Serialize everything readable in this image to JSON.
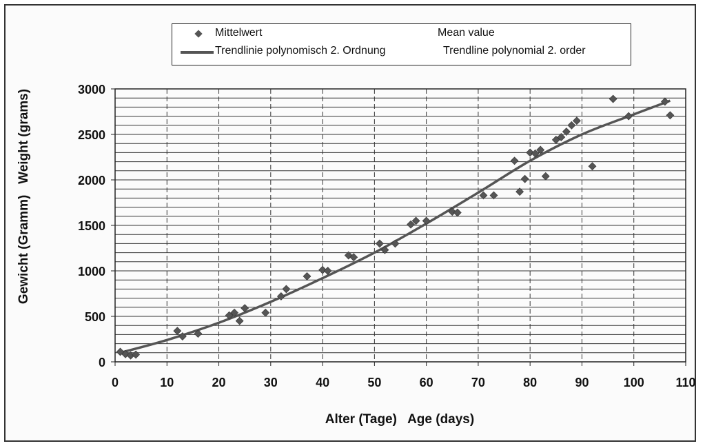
{
  "chart_data": {
    "type": "scatter",
    "xlabel": "Alter (Tage)   Age (days)",
    "ylabel": "Gewicht (Gramm)   Weight (grams)",
    "xlim": [
      0,
      110
    ],
    "ylim": [
      0,
      3000
    ],
    "x_ticks": [
      "0",
      "10",
      "20",
      "30",
      "40",
      "50",
      "60",
      "70",
      "80",
      "90",
      "100",
      "110"
    ],
    "y_ticks": [
      "0",
      "500",
      "1000",
      "1500",
      "2000",
      "2500",
      "3000"
    ],
    "grid": "horizontal solid every 100, vertical dashed every 10",
    "legend_position": "top",
    "legend": [
      {
        "label": "Mittelwert",
        "label_en": "Mean value",
        "marker": "diamond"
      },
      {
        "label": "Trendlinie polynomisch 2. Ordnung",
        "label_en": "Trendline polynomial 2. order",
        "marker": "line"
      }
    ],
    "series": [
      {
        "name": "Mittelwert",
        "points": [
          [
            1,
            110
          ],
          [
            2,
            85
          ],
          [
            3,
            70
          ],
          [
            4,
            80
          ],
          [
            12,
            340
          ],
          [
            13,
            280
          ],
          [
            16,
            310
          ],
          [
            22,
            510
          ],
          [
            23,
            540
          ],
          [
            24,
            450
          ],
          [
            25,
            590
          ],
          [
            29,
            540
          ],
          [
            32,
            720
          ],
          [
            33,
            800
          ],
          [
            37,
            940
          ],
          [
            40,
            1010
          ],
          [
            41,
            1000
          ],
          [
            45,
            1170
          ],
          [
            46,
            1150
          ],
          [
            51,
            1300
          ],
          [
            52,
            1230
          ],
          [
            54,
            1300
          ],
          [
            57,
            1510
          ],
          [
            58,
            1550
          ],
          [
            60,
            1550
          ],
          [
            65,
            1650
          ],
          [
            66,
            1640
          ],
          [
            71,
            1830
          ],
          [
            73,
            1830
          ],
          [
            77,
            2210
          ],
          [
            78,
            1870
          ],
          [
            79,
            2010
          ],
          [
            80,
            2300
          ],
          [
            81,
            2290
          ],
          [
            82,
            2330
          ],
          [
            83,
            2040
          ],
          [
            85,
            2440
          ],
          [
            86,
            2470
          ],
          [
            87,
            2530
          ],
          [
            88,
            2600
          ],
          [
            89,
            2650
          ],
          [
            92,
            2150
          ],
          [
            96,
            2890
          ],
          [
            99,
            2700
          ],
          [
            106,
            2860
          ],
          [
            107,
            2710
          ]
        ]
      },
      {
        "name": "Trendlinie polynomisch 2. Ordnung",
        "type": "line",
        "points": [
          [
            1,
            100
          ],
          [
            10,
            240
          ],
          [
            20,
            430
          ],
          [
            30,
            660
          ],
          [
            40,
            920
          ],
          [
            50,
            1200
          ],
          [
            60,
            1520
          ],
          [
            70,
            1860
          ],
          [
            80,
            2210
          ],
          [
            90,
            2500
          ],
          [
            100,
            2720
          ],
          [
            107,
            2870
          ]
        ]
      }
    ]
  }
}
